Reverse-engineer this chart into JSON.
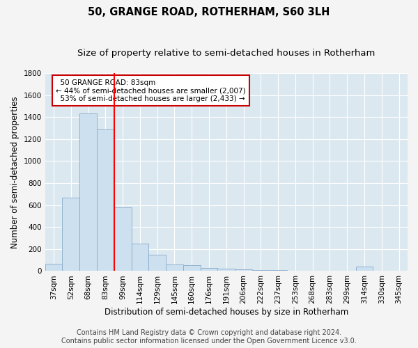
{
  "title": "50, GRANGE ROAD, ROTHERHAM, S60 3LH",
  "subtitle": "Size of property relative to semi-detached houses in Rotherham",
  "xlabel": "Distribution of semi-detached houses by size in Rotherham",
  "ylabel": "Number of semi-detached properties",
  "categories": [
    "37sqm",
    "52sqm",
    "68sqm",
    "83sqm",
    "99sqm",
    "114sqm",
    "129sqm",
    "145sqm",
    "160sqm",
    "176sqm",
    "191sqm",
    "206sqm",
    "222sqm",
    "237sqm",
    "253sqm",
    "268sqm",
    "283sqm",
    "299sqm",
    "314sqm",
    "330sqm",
    "345sqm"
  ],
  "values": [
    65,
    670,
    1430,
    1290,
    580,
    250,
    150,
    60,
    55,
    30,
    20,
    15,
    10,
    8,
    5,
    5,
    2,
    2,
    40,
    2,
    0
  ],
  "bar_color": "#cce0f0",
  "bar_edge_color": "#88aac8",
  "red_line_index": 3,
  "red_line_label": "50 GRANGE ROAD: 83sqm",
  "smaller_pct": "44%",
  "smaller_n": "2,007",
  "larger_pct": "53%",
  "larger_n": "2,433",
  "annotation_box_color": "#ffffff",
  "annotation_box_edge": "#cc0000",
  "ylim": [
    0,
    1800
  ],
  "yticks": [
    0,
    200,
    400,
    600,
    800,
    1000,
    1200,
    1400,
    1600,
    1800
  ],
  "footer1": "Contains HM Land Registry data © Crown copyright and database right 2024.",
  "footer2": "Contains public sector information licensed under the Open Government Licence v3.0.",
  "plot_bg_color": "#dce8f0",
  "fig_bg_color": "#f4f4f4",
  "grid_color": "#ffffff",
  "title_fontsize": 10.5,
  "subtitle_fontsize": 9.5,
  "axis_label_fontsize": 8.5,
  "tick_fontsize": 7.5,
  "footer_fontsize": 7,
  "annotation_fontsize": 7.5
}
